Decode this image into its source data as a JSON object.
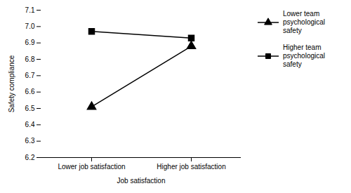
{
  "chart_data": {
    "type": "line",
    "categories": [
      "Lower job satisfaction",
      "Higher job satisfaction"
    ],
    "series": [
      {
        "name": "Lower team\npsychological\nsafety",
        "color": "#000000",
        "marker": "triangle",
        "values": [
          6.51,
          6.88
        ]
      },
      {
        "name": "Higher team\npsychological\nsafety",
        "color": "#000000",
        "marker": "square",
        "values": [
          6.97,
          6.93
        ]
      }
    ],
    "xlabel": "Job satisfaction",
    "ylabel": "Safety compliance",
    "ylim": [
      6.2,
      7.1
    ],
    "yticks": [
      6.2,
      6.3,
      6.4,
      6.5,
      6.6,
      6.7,
      6.8,
      6.9,
      {
        "value": 7,
        "label": "7.0"
      },
      7.1
    ],
    "legend": "right",
    "grid": false
  }
}
